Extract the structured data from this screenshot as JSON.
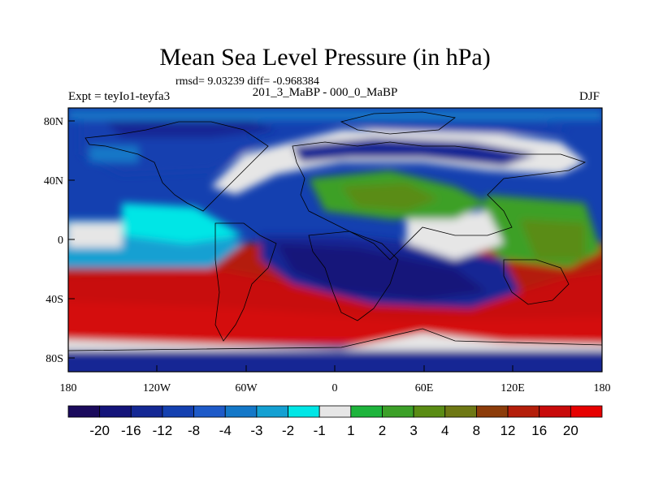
{
  "title": "Mean Sea Level Pressure (in hPa)",
  "stats_text": "rmsd= 9.03239 diff= -0.968384",
  "experiment_label": "Expt = teyIo1-teyfa3",
  "period_label": "201_3_MaBP - 000_0_MaBP",
  "season_label": "DJF",
  "x_ticks": [
    "180",
    "120W",
    "60W",
    "0",
    "60E",
    "120E",
    "180"
  ],
  "y_ticks": [
    "80N",
    "40N",
    "0",
    "40S",
    "80S"
  ],
  "colorbar": {
    "labels": [
      "-20",
      "-16",
      "-12",
      "-8",
      "-4",
      "-3",
      "-2",
      "-1",
      "1",
      "2",
      "3",
      "4",
      "8",
      "12",
      "16",
      "20"
    ],
    "colors": [
      "#1a0a5c",
      "#14147a",
      "#142894",
      "#1440b0",
      "#1e5ac8",
      "#1478c8",
      "#14a0d2",
      "#00e6e6",
      "#e6e6e6",
      "#1eb43c",
      "#3ca028",
      "#5a8c14",
      "#6e7814",
      "#8c3c0a",
      "#b41e0a",
      "#c80a0a",
      "#e60000"
    ]
  }
}
